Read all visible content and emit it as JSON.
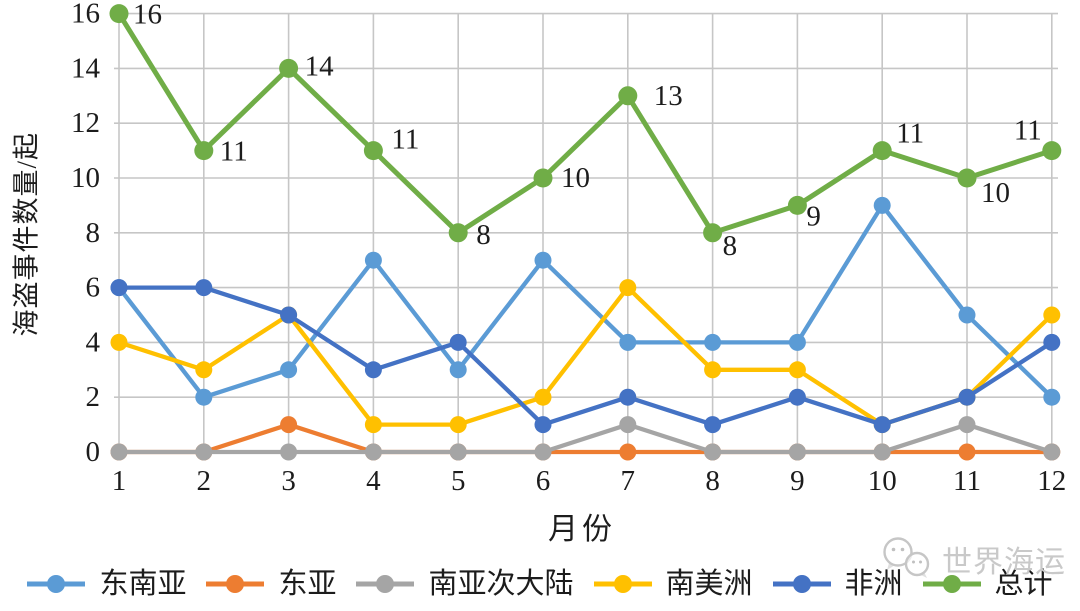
{
  "chart_data": {
    "type": "line",
    "title": "",
    "xlabel": "月份",
    "ylabel": "海盗事件数量/起",
    "x_categories": [
      1,
      2,
      3,
      4,
      5,
      6,
      7,
      8,
      9,
      10,
      11,
      12
    ],
    "y_axis": {
      "min": 0,
      "max": 16,
      "step": 2
    },
    "grid": true,
    "legend_position": "bottom",
    "series": [
      {
        "name": "东南亚",
        "slug": "southeast-asia",
        "color": "#5B9BD5",
        "values": [
          6,
          2,
          3,
          7,
          3,
          7,
          4,
          4,
          4,
          9,
          5,
          2
        ]
      },
      {
        "name": "东亚",
        "slug": "east-asia",
        "color": "#ED7D31",
        "values": [
          0,
          0,
          1,
          0,
          0,
          0,
          0,
          0,
          0,
          0,
          0,
          0
        ]
      },
      {
        "name": "南亚次大陆",
        "slug": "south-asian-subcontinent",
        "color": "#A5A5A5",
        "values": [
          0,
          0,
          0,
          0,
          0,
          0,
          1,
          0,
          0,
          0,
          1,
          0
        ]
      },
      {
        "name": "南美洲",
        "slug": "south-america",
        "color": "#FFC000",
        "values": [
          4,
          3,
          5,
          1,
          1,
          2,
          6,
          3,
          3,
          1,
          2,
          5
        ]
      },
      {
        "name": "非洲",
        "slug": "africa",
        "color": "#4472C4",
        "values": [
          6,
          6,
          5,
          3,
          4,
          1,
          2,
          1,
          2,
          1,
          2,
          4
        ]
      },
      {
        "name": "总计",
        "slug": "total",
        "color": "#70AD47",
        "values": [
          16,
          11,
          14,
          11,
          8,
          10,
          13,
          8,
          9,
          11,
          10,
          11
        ],
        "data_labels": true
      }
    ]
  },
  "watermark": {
    "text": "世界海运",
    "icon": "wechat-icon"
  },
  "colors": {
    "grid": "#c6c6c6",
    "text": "#1c1c1c",
    "watermark": "#c9c9c9",
    "background": "#ffffff"
  }
}
